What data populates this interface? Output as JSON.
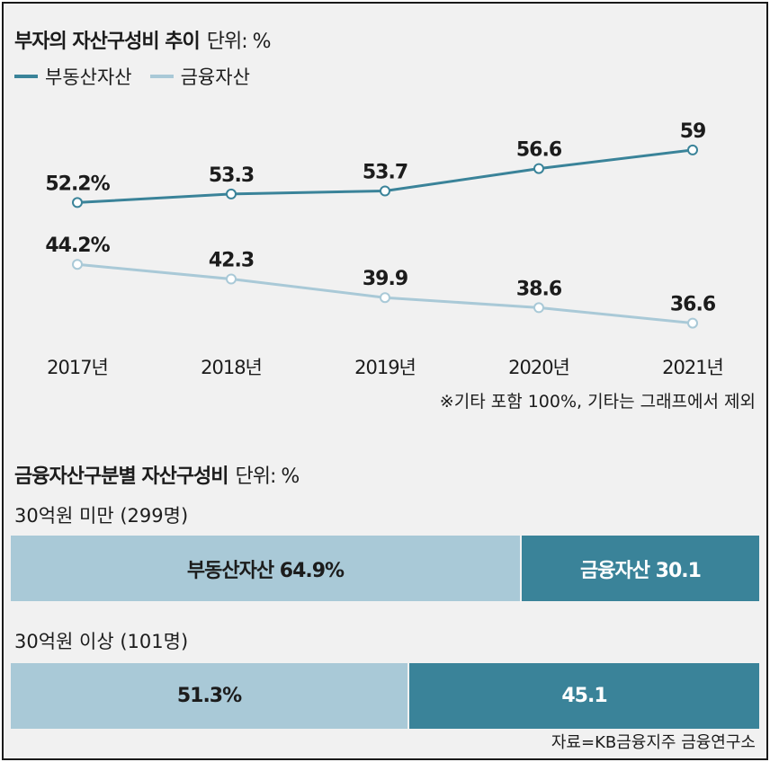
{
  "top_title": {
    "main": "부자의 자산구성비 추이",
    "unit": "단위: %"
  },
  "legend": [
    {
      "label": "부동산자산",
      "color": "#3a8399"
    },
    {
      "label": "금융자산",
      "color": "#a9c9d7"
    }
  ],
  "chart_data": [
    {
      "type": "line",
      "title": "부자의 자산구성비 추이",
      "unit": "단위: %",
      "categories": [
        "2017년",
        "2018년",
        "2019년",
        "2020년",
        "2021년"
      ],
      "series": [
        {
          "name": "부동산자산",
          "values": [
            52.2,
            53.3,
            53.7,
            56.6,
            59
          ],
          "labels": [
            "52.2%",
            "53.3",
            "53.7",
            "56.6",
            "59"
          ],
          "color": "#3a8399"
        },
        {
          "name": "금융자산",
          "values": [
            44.2,
            42.3,
            39.9,
            38.6,
            36.6
          ],
          "labels": [
            "44.2%",
            "42.3",
            "39.9",
            "38.6",
            "36.6"
          ],
          "color": "#a9c9d7"
        }
      ],
      "xlabel": "",
      "ylabel": "",
      "grid": false
    },
    {
      "type": "bar",
      "stacked": true,
      "orientation": "horizontal",
      "title": "금융자산구분별 자산구성비",
      "unit": "단위: %",
      "categories": [
        "30억원 미만 (299명)",
        "30억원 이상 (101명)"
      ],
      "series": [
        {
          "name": "부동산자산",
          "values": [
            64.9,
            51.3
          ],
          "labels": [
            "부동산자산 64.9%",
            "51.3%"
          ],
          "color": "#a9c9d7"
        },
        {
          "name": "금융자산",
          "values": [
            30.1,
            45.1
          ],
          "labels": [
            "금융자산 30.1",
            "45.1"
          ],
          "color": "#3a8399"
        }
      ]
    }
  ],
  "note": "※기타 포함 100%, 기타는 그래프에서 제외",
  "bottom_title": {
    "main": "금융자산구분별 자산구성비",
    "unit": "단위: %"
  },
  "source": "자료=KB금융지주 금융연구소",
  "colors": {
    "dark": "#3a8399",
    "light": "#a9c9d7",
    "background": "#f1f1f1"
  }
}
